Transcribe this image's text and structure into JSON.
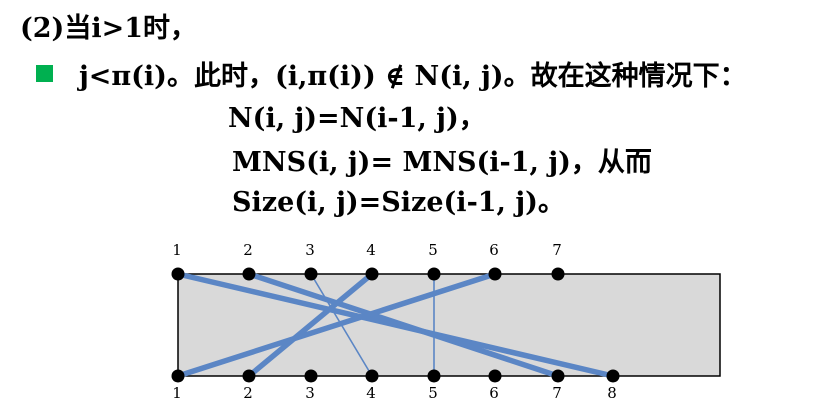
{
  "heading": "(2)当i>1时，",
  "bullet_text": "j<π(i)。此时，(i,π(i)) ∉ N(i, j)。故在这种情况下：",
  "formula_lines": [
    "N(i, j)=N(i-1, j)，",
    "MNS(i, j)= MNS(i-1, j)，从而",
    "Size(i, j)=Size(i-1, j)。"
  ],
  "diagram": {
    "top_labels": [
      "1",
      "2",
      "3",
      "4",
      "5",
      "6",
      "7"
    ],
    "bottom_labels": [
      "1",
      "2",
      "3",
      "4",
      "5",
      "6",
      "7",
      "8"
    ],
    "connections": [
      {
        "top": 1,
        "bottom": 8,
        "style": "thick"
      },
      {
        "top": 2,
        "bottom": 7,
        "style": "thick"
      },
      {
        "top": 3,
        "bottom": 4,
        "style": "thin"
      },
      {
        "top": 4,
        "bottom": 2,
        "style": "thick"
      },
      {
        "top": 5,
        "bottom": 5,
        "style": "thin"
      },
      {
        "top": 6,
        "bottom": 1,
        "style": "thick"
      }
    ],
    "colors": {
      "line": "#5b86c5",
      "box_fill": "#d9d9d9",
      "pin": "#000000",
      "bullet": "#00b050"
    }
  }
}
